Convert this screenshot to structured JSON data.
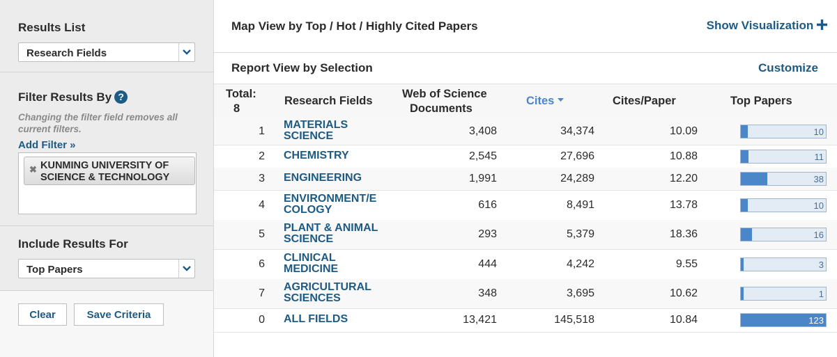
{
  "sidebar": {
    "results_list_title": "Results List",
    "results_list_value": "Research Fields",
    "filter_title": "Filter Results By",
    "help_glyph": "?",
    "filter_hint": "Changing the filter field removes all current filters.",
    "add_filter": "Add Filter »",
    "filter_chip": "KUNMING UNIVERSITY OF SCIENCE & TECHNOLOGY",
    "include_title": "Include Results For",
    "include_value": "Top Papers",
    "clear_label": "Clear",
    "save_label": "Save Criteria"
  },
  "main": {
    "map_view_title": "Map View by Top / Hot / Highly Cited Papers",
    "show_viz": "Show Visualization",
    "report_view_title": "Report View by Selection",
    "customize": "Customize"
  },
  "table": {
    "headers": {
      "total": "Total:",
      "total_count": "8",
      "field": "Research Fields",
      "docs_line1": "Web of Science",
      "docs_line2": "Documents",
      "cites": "Cites",
      "cpp": "Cites/Paper",
      "top": "Top Papers"
    },
    "max_top": 123,
    "rows": [
      {
        "rank": "1",
        "field": "MATERIALS SCIENCE",
        "field_lines": [
          "MATERIALS",
          "SCIENCE"
        ],
        "docs": "3,408",
        "cites": "34,374",
        "cpp": "10.09",
        "top": 10
      },
      {
        "rank": "2",
        "field": "CHEMISTRY",
        "field_lines": [
          "CHEMISTRY"
        ],
        "docs": "2,545",
        "cites": "27,696",
        "cpp": "10.88",
        "top": 11
      },
      {
        "rank": "3",
        "field": "ENGINEERING",
        "field_lines": [
          "ENGINEERING"
        ],
        "docs": "1,991",
        "cites": "24,289",
        "cpp": "12.20",
        "top": 38
      },
      {
        "rank": "4",
        "field": "ENVIRONMENT/ECOLOGY",
        "field_lines": [
          "ENVIRONMENT/E",
          "COLOGY"
        ],
        "docs": "616",
        "cites": "8,491",
        "cpp": "13.78",
        "top": 10
      },
      {
        "rank": "5",
        "field": "PLANT & ANIMAL SCIENCE",
        "field_lines": [
          "PLANT & ANIMAL",
          "SCIENCE"
        ],
        "docs": "293",
        "cites": "5,379",
        "cpp": "18.36",
        "top": 16
      },
      {
        "rank": "6",
        "field": "CLINICAL MEDICINE",
        "field_lines": [
          "CLINICAL",
          "MEDICINE"
        ],
        "docs": "444",
        "cites": "4,242",
        "cpp": "9.55",
        "top": 3
      },
      {
        "rank": "7",
        "field": "AGRICULTURAL SCIENCES",
        "field_lines": [
          "AGRICULTURAL",
          "SCIENCES"
        ],
        "docs": "348",
        "cites": "3,695",
        "cpp": "10.62",
        "top": 1
      },
      {
        "rank": "0",
        "field": "ALL FIELDS",
        "field_lines": [
          "ALL FIELDS"
        ],
        "docs": "13,421",
        "cites": "145,518",
        "cpp": "10.84",
        "top": 123
      }
    ]
  },
  "colors": {
    "accent": "#1d5a84",
    "bar_fill": "#4a86c8",
    "bar_bg": "#e3ebf4"
  }
}
